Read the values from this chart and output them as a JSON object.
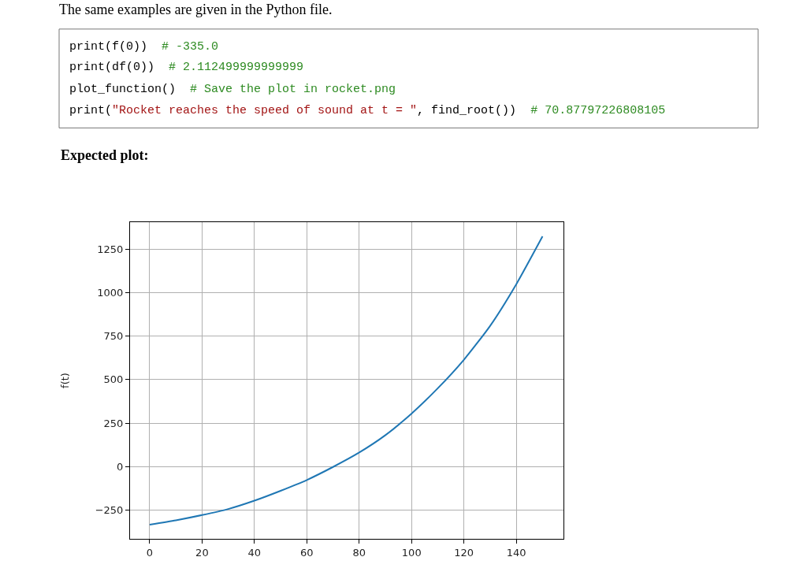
{
  "chart_data": {
    "type": "line",
    "title": "The same examples are given in the Python file.",
    "annotations": [
      "print(f(0))  # -335.0",
      "print(df(0))  # 2.112499999999999",
      "plot_function()  # Save the plot in rocket.png",
      "print(\"Rocket reaches the speed of sound at t = \", find_root())  # 70.87797226808105",
      "Expected plot:"
    ],
    "ylabel": "f(t)",
    "x": [
      0,
      10,
      20,
      30,
      40,
      50,
      60,
      70,
      80,
      90,
      100,
      110,
      120,
      130,
      140,
      150
    ],
    "series": [
      {
        "color": "#1f77b4",
        "values": [
          -335,
          -310,
          -280,
          -245,
          -197,
          -140,
          -78,
          -3,
          80,
          180,
          305,
          450,
          615,
          810,
          1050,
          1325
        ]
      }
    ],
    "xlim": [
      -7.5,
      158
    ],
    "ylim": [
      -417,
      1407
    ],
    "xticks": [
      0,
      20,
      40,
      60,
      80,
      100,
      120,
      140
    ],
    "yticks": [
      -250,
      0,
      250,
      500,
      750,
      1000,
      1250
    ],
    "grid": true,
    "legend": false,
    "marker": "none",
    "line_style": "solid"
  }
}
